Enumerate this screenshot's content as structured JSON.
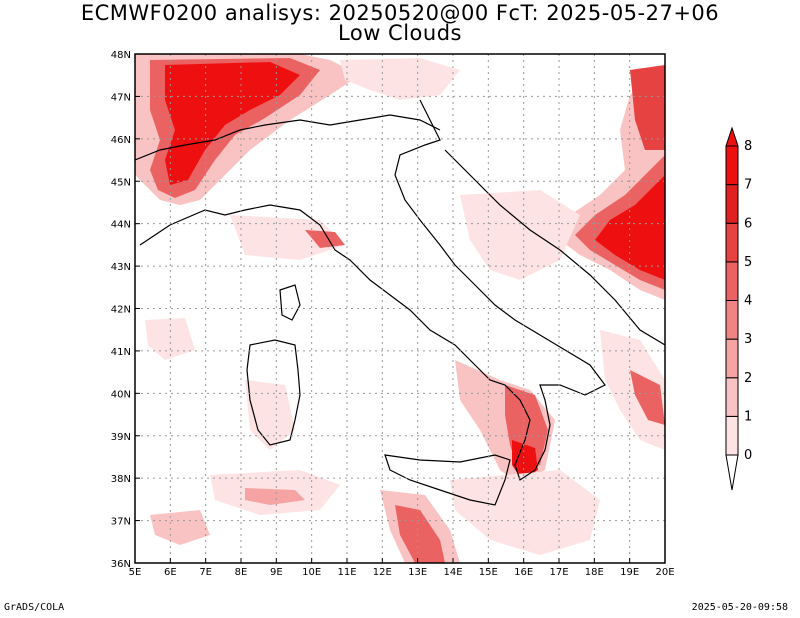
{
  "title": {
    "line1": "ECMWF0200 analisys: 20250520@00 FcT: 2025-05-27+06",
    "line2": "Low Clouds"
  },
  "footer": {
    "left": "GrADS/COLA",
    "right": "2025-05-20-09:58"
  },
  "map": {
    "lon_range": [
      5,
      20
    ],
    "lat_range": [
      36,
      48
    ],
    "grid": true,
    "x_ticks": [
      "5E",
      "6E",
      "7E",
      "8E",
      "9E",
      "10E",
      "11E",
      "12E",
      "13E",
      "14E",
      "15E",
      "16E",
      "17E",
      "18E",
      "19E",
      "20E"
    ],
    "y_ticks": [
      "36N",
      "37N",
      "38N",
      "39N",
      "40N",
      "41N",
      "42N",
      "43N",
      "44N",
      "45N",
      "46N",
      "47N",
      "48N"
    ]
  },
  "colorbar": {
    "levels": [
      "0",
      "1",
      "2",
      "3",
      "4",
      "5",
      "6",
      "7",
      "8"
    ],
    "colors": [
      "#ffffff",
      "#fde3e3",
      "#f9c3c3",
      "#f5a3a3",
      "#f08383",
      "#eb6262",
      "#e64242",
      "#e12121",
      "#ee1010"
    ]
  }
}
